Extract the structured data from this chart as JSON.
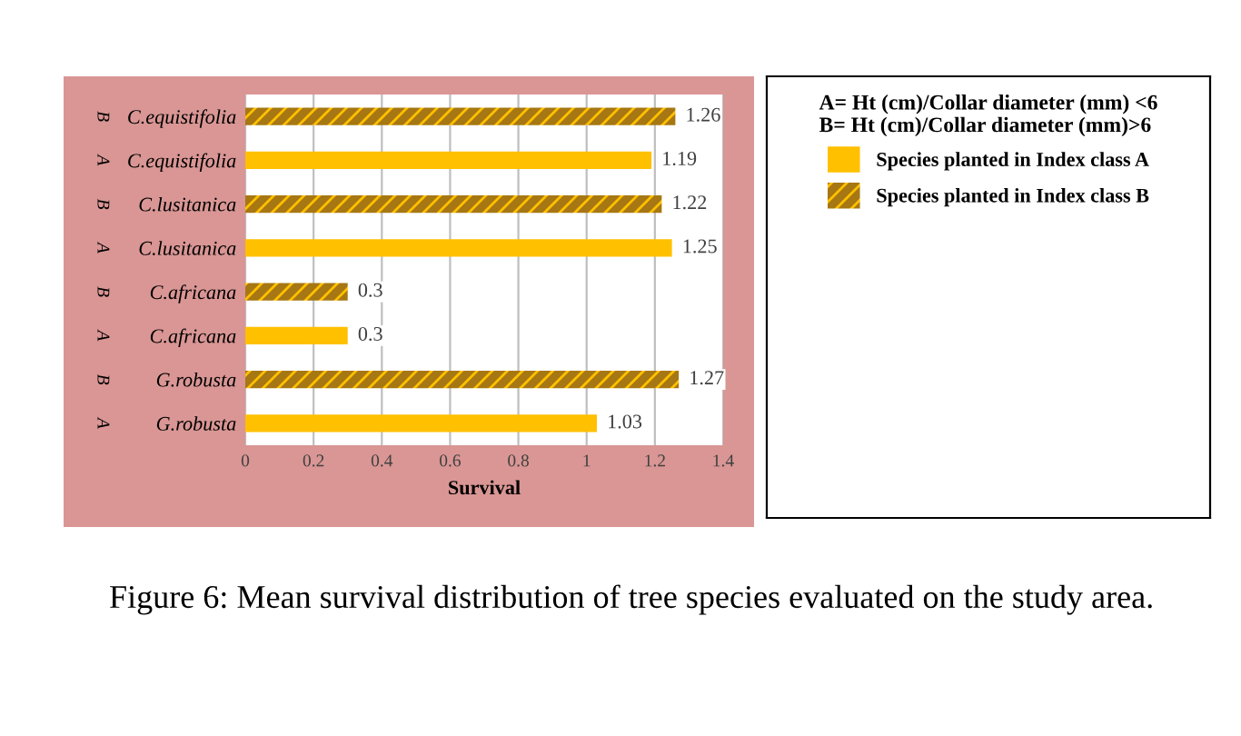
{
  "chart_data": {
    "type": "bar",
    "orientation": "horizontal",
    "categories": [
      "C.equistifolia",
      "C.equistifolia",
      "C.lusitanica",
      "C.lusitanica",
      "C.africana",
      "C.africana",
      "G.robusta",
      "G.robusta"
    ],
    "series": [
      {
        "name": "Species planted in Index class B",
        "color": "#a67712",
        "values": [
          1.26,
          null,
          1.22,
          null,
          0.3,
          null,
          1.27,
          null
        ]
      },
      {
        "name": "Species planted in Index class A",
        "color": "#ffc000",
        "values": [
          null,
          1.19,
          null,
          1.25,
          null,
          0.3,
          null,
          1.03
        ]
      }
    ],
    "xlabel": "Survival",
    "xlim": [
      0,
      1.4
    ],
    "xticks": [
      0,
      0.2,
      0.4,
      0.6,
      0.8,
      1,
      1.2,
      1.4
    ],
    "grid": "x",
    "data_labels": true,
    "legend": "right",
    "legend_title": "A= Ht (cm)/Collar diameter (mm) <6\nB= Ht (cm)/Collar diameter (mm)>6",
    "annotations": [
      "B",
      "A",
      "B",
      "A",
      "B",
      "A",
      "B",
      "A",
      "Figure 6: Mean survival distribution of tree species evaluated on the study area."
    ]
  }
}
